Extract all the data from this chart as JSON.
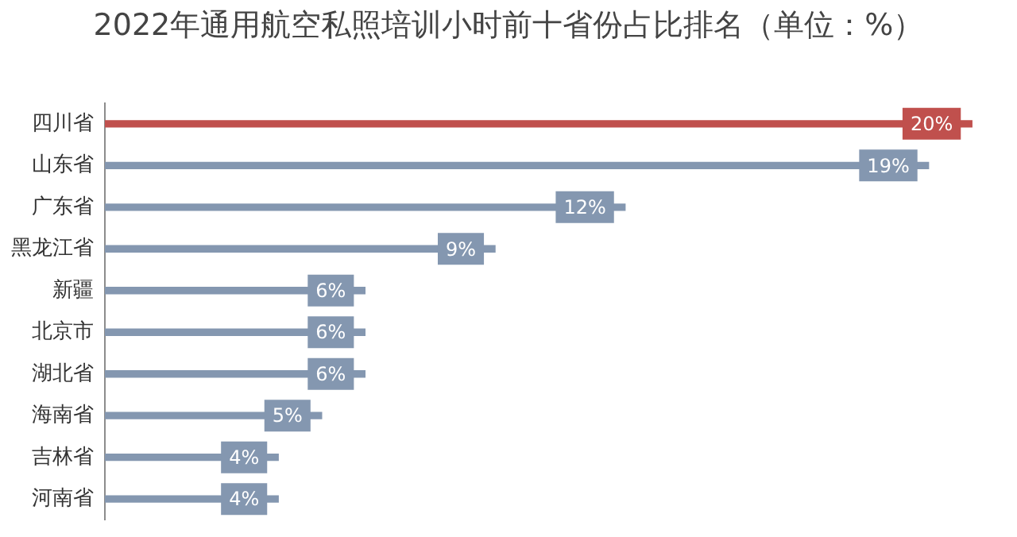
{
  "chart_data": {
    "type": "bar",
    "orientation": "horizontal",
    "title": "2022年通用航空私照培训小时前十省份占比排名（单位：%）",
    "categories": [
      "四川省",
      "山东省",
      "广东省",
      "黑龙江省",
      "新疆",
      "北京市",
      "湖北省",
      "海南省",
      "吉林省",
      "河南省"
    ],
    "values": [
      20,
      19,
      12,
      9,
      6,
      6,
      6,
      5,
      4,
      4
    ],
    "colors": [
      "#c0504d",
      "#8497b0",
      "#8497b0",
      "#8497b0",
      "#8497b0",
      "#8497b0",
      "#8497b0",
      "#8497b0",
      "#8497b0",
      "#8497b0"
    ],
    "value_labels": [
      "20%",
      "19%",
      "12%",
      "9%",
      "6%",
      "6%",
      "6%",
      "5%",
      "4%",
      "4%"
    ],
    "legend": false
  }
}
